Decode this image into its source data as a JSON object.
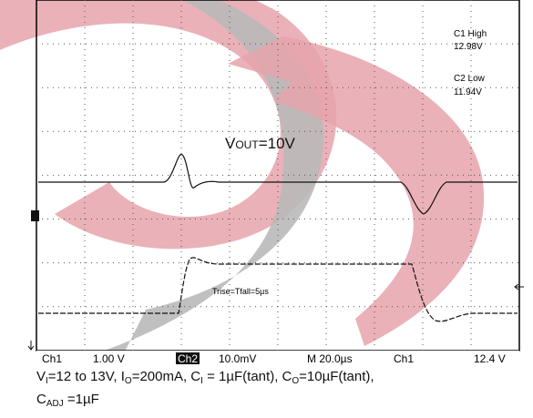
{
  "scope": {
    "readouts": [
      {
        "label": "C1 High",
        "value": "12.98V"
      },
      {
        "label": "C2 Low",
        "value": "11.94V"
      }
    ],
    "vout": {
      "main": "V",
      "sub": "OUT",
      "rest": "=10V"
    },
    "annotation": "Trise=Tfall=5µs",
    "status": [
      "Ch1",
      "1.00 V",
      "Ch2",
      "10.0mV",
      "M 20.0µs",
      "Ch1",
      "12.4 V"
    ]
  },
  "caption": {
    "line1": [
      "V",
      "I",
      "=12 to 13V, I",
      "O",
      "=200mA, C",
      "I",
      " = 1µF(tant), C",
      "O",
      "=10µF(tant),"
    ],
    "line2": [
      "C",
      "ADJ",
      " =1µF"
    ]
  }
}
